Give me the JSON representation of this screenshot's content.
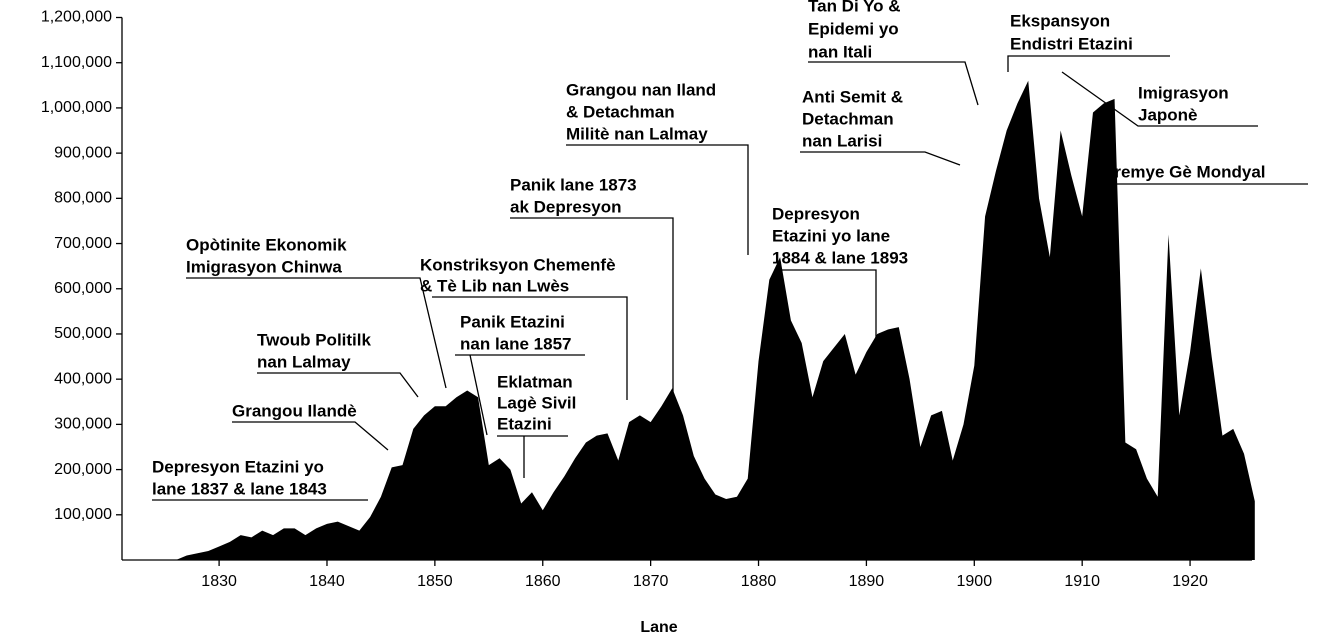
{
  "chart_data": {
    "type": "area",
    "x_label": "Lane",
    "color": "#000000",
    "x": [
      1826,
      1827,
      1828,
      1829,
      1830,
      1831,
      1832,
      1833,
      1834,
      1835,
      1836,
      1837,
      1838,
      1839,
      1840,
      1841,
      1842,
      1843,
      1844,
      1845,
      1846,
      1847,
      1848,
      1849,
      1850,
      1851,
      1852,
      1853,
      1854,
      1855,
      1856,
      1857,
      1858,
      1859,
      1860,
      1861,
      1862,
      1863,
      1864,
      1865,
      1866,
      1867,
      1868,
      1869,
      1870,
      1871,
      1872,
      1873,
      1874,
      1875,
      1876,
      1877,
      1878,
      1879,
      1880,
      1881,
      1882,
      1883,
      1884,
      1885,
      1886,
      1887,
      1888,
      1889,
      1890,
      1891,
      1892,
      1893,
      1894,
      1895,
      1896,
      1897,
      1898,
      1899,
      1900,
      1901,
      1902,
      1903,
      1904,
      1905,
      1906,
      1907,
      1908,
      1909,
      1910,
      1911,
      1912,
      1913,
      1914,
      1915,
      1916,
      1917,
      1918,
      1919,
      1920,
      1921,
      1922,
      1923,
      1924,
      1925,
      1926
    ],
    "values": [
      0,
      10000,
      15000,
      20000,
      30000,
      40000,
      55000,
      50000,
      65000,
      55000,
      70000,
      70000,
      55000,
      70000,
      80000,
      85000,
      75000,
      65000,
      95000,
      140000,
      205000,
      210000,
      290000,
      320000,
      340000,
      340000,
      360000,
      375000,
      360000,
      210000,
      225000,
      200000,
      125000,
      150000,
      110000,
      150000,
      185000,
      225000,
      260000,
      275000,
      280000,
      220000,
      305000,
      320000,
      305000,
      340000,
      380000,
      320000,
      230000,
      180000,
      145000,
      135000,
      140000,
      180000,
      440000,
      620000,
      670000,
      530000,
      480000,
      360000,
      440000,
      470000,
      500000,
      410000,
      460000,
      500000,
      510000,
      515000,
      400000,
      250000,
      320000,
      330000,
      220000,
      300000,
      430000,
      760000,
      860000,
      950000,
      1010000,
      1060000,
      800000,
      670000,
      950000,
      850000,
      760000,
      990000,
      1010000,
      1020000,
      260000,
      245000,
      180000,
      140000,
      720000,
      320000,
      460000,
      645000,
      450000,
      275000,
      290000,
      235000,
      130000
    ],
    "xlim": [
      1821,
      1926
    ],
    "xticks": [
      1830,
      1840,
      1850,
      1860,
      1870,
      1880,
      1890,
      1900,
      1910,
      1920
    ],
    "ylim": [
      0,
      1200000
    ],
    "yticks": [
      {
        "value": 100000,
        "label": "100,000"
      },
      {
        "value": 200000,
        "label": "200,000"
      },
      {
        "value": 300000,
        "label": "300,000"
      },
      {
        "value": 400000,
        "label": "400,000"
      },
      {
        "value": 500000,
        "label": "500,000"
      },
      {
        "value": 600000,
        "label": "600,000"
      },
      {
        "value": 700000,
        "label": "700,000"
      },
      {
        "value": 800000,
        "label": "800,000"
      },
      {
        "value": 900000,
        "label": "900,000"
      },
      {
        "value": 1000000,
        "label": "1,000,000"
      },
      {
        "value": 1100000,
        "label": "1,100,000"
      },
      {
        "value": 1200000,
        "label": "1,200,000"
      }
    ],
    "annotations": [
      {
        "lines": [
          "Depresyon Etazini yo",
          "lane 1837 & lane 1843"
        ]
      },
      {
        "lines": [
          "Grangou Ilandè"
        ]
      },
      {
        "lines": [
          "Twoub Politilk",
          "nan Lalmay"
        ]
      },
      {
        "lines": [
          "Opòtinite Ekonomik",
          "Imigrasyon Chinwa"
        ]
      },
      {
        "lines": [
          "Konstriksyon Chemenfè",
          "& Tè Lib nan Lwès"
        ]
      },
      {
        "lines": [
          "Panik Etazini",
          "nan lane 1857"
        ]
      },
      {
        "lines": [
          "Eklatman",
          "Lagè Sivil",
          "Etazini"
        ]
      },
      {
        "lines": [
          "Panik lane 1873",
          "ak Depresyon"
        ]
      },
      {
        "lines": [
          "Grangou nan Iland",
          "& Detachman",
          "Militè nan Lalmay"
        ]
      },
      {
        "lines": [
          "Depresyon",
          "Etazini yo lane",
          "1884 & lane 1893"
        ]
      },
      {
        "lines": [
          "Anti Semit &",
          "Detachman",
          "nan Larisi"
        ]
      },
      {
        "lines": [
          "Tan Di Yo &",
          "Epidemi yo",
          "nan Itali"
        ]
      },
      {
        "lines": [
          "Ekspansyon",
          "Endistri Etazini"
        ]
      },
      {
        "lines": [
          "Imigrasyon",
          "Japonè"
        ]
      },
      {
        "lines": [
          "Premye Gè Mondyal"
        ]
      }
    ]
  }
}
